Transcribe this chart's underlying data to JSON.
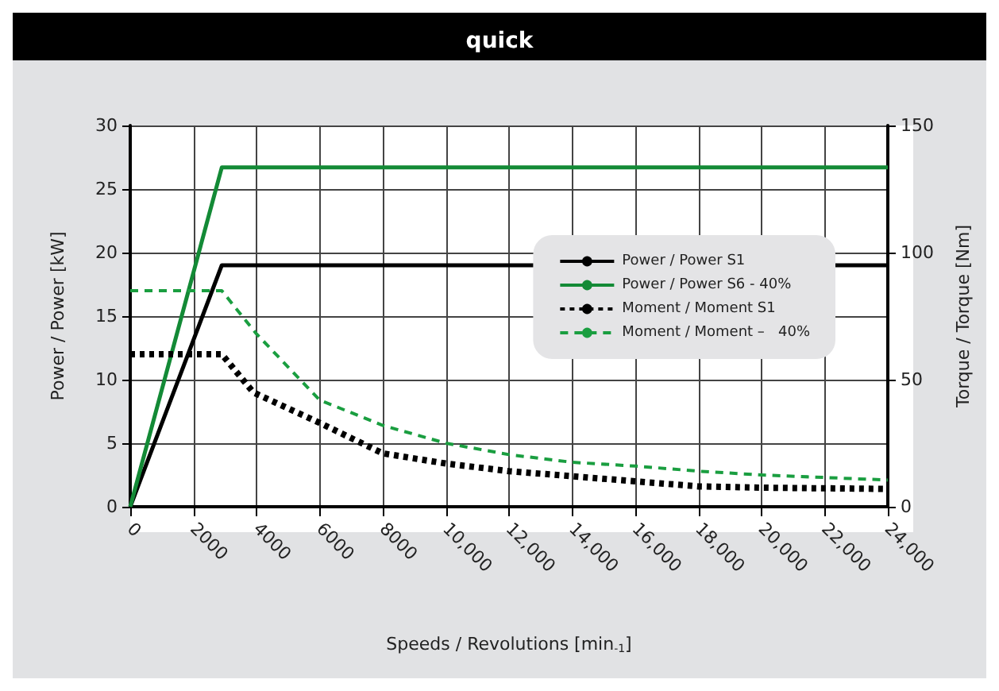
{
  "chart_data": {
    "type": "line",
    "title": "quick",
    "xlabel": "Speeds / Revolutions [min$_{-1}$]",
    "ylabel": "Power / Power [kW]",
    "y2label": "Torque / Torque [Nm]",
    "xlim": [
      0,
      24000
    ],
    "xticks": [
      0,
      2000,
      4000,
      6000,
      8000,
      {
        "value": 10000,
        "label": "10,000"
      },
      {
        "value": 12000,
        "label": "12,000"
      },
      {
        "value": 14000,
        "label": "14,000"
      },
      {
        "value": 16000,
        "label": "16,000"
      },
      {
        "value": 18000,
        "label": "18,000"
      },
      {
        "value": 20000,
        "label": "20,000"
      },
      {
        "value": 22000,
        "label": "22,000"
      },
      {
        "value": 24000,
        "label": "24,000"
      }
    ],
    "ylim": [
      0,
      30
    ],
    "yticks": [
      0,
      5,
      10,
      15,
      20,
      25,
      30
    ],
    "y2lim": [
      0,
      150
    ],
    "y2ticks": [
      0,
      50,
      100,
      150
    ],
    "grid": true,
    "legend": "right",
    "marker": "none",
    "series": [
      {
        "name": "Power / Power S1",
        "color": "#000000",
        "line_style": "solid",
        "x": [
          0,
          2900,
          24000
        ],
        "values": [
          0,
          19,
          19
        ]
      },
      {
        "name": "Power / Power S6 - 40%",
        "color": "#138a36",
        "line_style": "solid",
        "x": [
          0,
          2900,
          24000
        ],
        "values": [
          0,
          26.7,
          26.7
        ]
      },
      {
        "name": "Moment / Moment S1",
        "color": "#000000",
        "line_style": "dotted",
        "axis": "y2",
        "x": [
          0,
          2900,
          3900,
          6000,
          8000,
          10000,
          12000,
          14000,
          16000,
          18000,
          20000,
          24000
        ],
        "values": [
          60,
          60,
          45,
          33,
          21,
          17,
          14,
          12,
          10,
          8,
          7.5,
          7
        ]
      },
      {
        "name": "Moment / Moment –   40%",
        "color": "#1a9e40",
        "line_style": "dashed",
        "axis": "y2",
        "x": [
          0,
          2900,
          4000,
          6000,
          8000,
          10000,
          12000,
          14000,
          16000,
          18000,
          20000,
          24000
        ],
        "values": [
          85,
          85,
          68,
          42,
          32,
          25,
          20.5,
          17.5,
          16,
          14,
          12.5,
          10.5
        ]
      }
    ]
  }
}
